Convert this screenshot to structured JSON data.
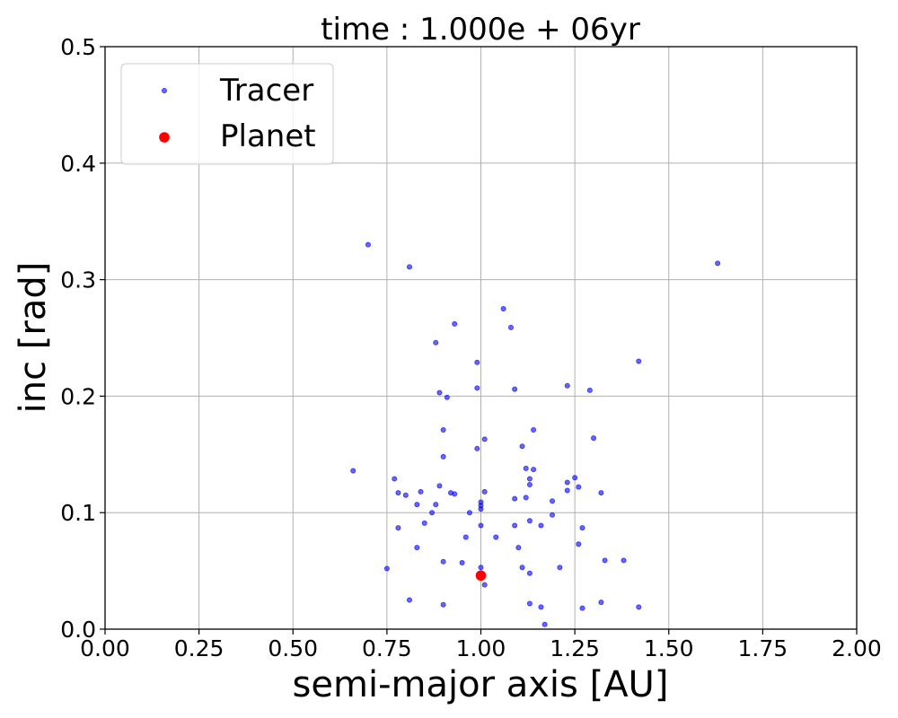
{
  "chart_data": {
    "type": "scatter",
    "title": "time : 1.000e + 06yr",
    "xlabel": "semi-major axis [AU]",
    "ylabel": "inc [rad]",
    "xlim": [
      0.0,
      2.0
    ],
    "ylim": [
      0.0,
      0.5
    ],
    "x_ticks": [
      "0.00",
      "0.25",
      "0.50",
      "0.75",
      "1.00",
      "1.25",
      "1.50",
      "1.75",
      "2.00"
    ],
    "y_ticks": [
      "0.0",
      "0.1",
      "0.2",
      "0.3",
      "0.4",
      "0.5"
    ],
    "grid": true,
    "legend_position": "top-left",
    "series": [
      {
        "name": "Tracer",
        "color": "#0000ff",
        "marker": "small-circle",
        "points": [
          [
            0.7,
            0.33
          ],
          [
            0.81,
            0.311
          ],
          [
            1.63,
            0.314
          ],
          [
            1.06,
            0.275
          ],
          [
            0.93,
            0.262
          ],
          [
            1.08,
            0.259
          ],
          [
            0.88,
            0.246
          ],
          [
            0.99,
            0.229
          ],
          [
            1.42,
            0.23
          ],
          [
            1.23,
            0.209
          ],
          [
            0.99,
            0.207
          ],
          [
            1.09,
            0.206
          ],
          [
            1.29,
            0.205
          ],
          [
            0.89,
            0.203
          ],
          [
            0.91,
            0.199
          ],
          [
            0.9,
            0.171
          ],
          [
            1.14,
            0.171
          ],
          [
            1.3,
            0.164
          ],
          [
            1.01,
            0.163
          ],
          [
            1.11,
            0.157
          ],
          [
            0.99,
            0.155
          ],
          [
            0.9,
            0.148
          ],
          [
            1.12,
            0.138
          ],
          [
            1.14,
            0.137
          ],
          [
            0.66,
            0.136
          ],
          [
            1.25,
            0.13
          ],
          [
            1.13,
            0.129
          ],
          [
            0.77,
            0.129
          ],
          [
            1.23,
            0.126
          ],
          [
            1.13,
            0.124
          ],
          [
            1.26,
            0.122
          ],
          [
            0.89,
            0.123
          ],
          [
            1.23,
            0.119
          ],
          [
            1.01,
            0.118
          ],
          [
            0.84,
            0.118
          ],
          [
            0.92,
            0.117
          ],
          [
            1.32,
            0.117
          ],
          [
            0.78,
            0.117
          ],
          [
            0.93,
            0.116
          ],
          [
            0.8,
            0.115
          ],
          [
            1.09,
            0.112
          ],
          [
            1.12,
            0.113
          ],
          [
            1.19,
            0.11
          ],
          [
            1.0,
            0.109
          ],
          [
            1.0,
            0.106
          ],
          [
            0.88,
            0.107
          ],
          [
            0.83,
            0.107
          ],
          [
            1.0,
            0.103
          ],
          [
            0.97,
            0.1
          ],
          [
            0.87,
            0.1
          ],
          [
            1.19,
            0.098
          ],
          [
            1.13,
            0.093
          ],
          [
            0.85,
            0.091
          ],
          [
            1.16,
            0.089
          ],
          [
            1.0,
            0.089
          ],
          [
            1.09,
            0.089
          ],
          [
            0.78,
            0.087
          ],
          [
            1.27,
            0.087
          ],
          [
            0.96,
            0.079
          ],
          [
            1.04,
            0.079
          ],
          [
            1.26,
            0.073
          ],
          [
            0.83,
            0.07
          ],
          [
            1.1,
            0.07
          ],
          [
            1.33,
            0.059
          ],
          [
            1.38,
            0.059
          ],
          [
            0.9,
            0.058
          ],
          [
            0.95,
            0.057
          ],
          [
            1.21,
            0.053
          ],
          [
            1.0,
            0.053
          ],
          [
            1.11,
            0.053
          ],
          [
            0.75,
            0.052
          ],
          [
            1.13,
            0.048
          ],
          [
            1.01,
            0.038
          ],
          [
            0.81,
            0.025
          ],
          [
            1.32,
            0.023
          ],
          [
            1.13,
            0.022
          ],
          [
            0.9,
            0.021
          ],
          [
            1.42,
            0.019
          ],
          [
            1.16,
            0.019
          ],
          [
            1.27,
            0.018
          ],
          [
            1.17,
            0.004
          ]
        ]
      },
      {
        "name": "Planet",
        "color": "#ff0000",
        "marker": "large-circle",
        "points": [
          [
            1.0,
            0.046
          ]
        ]
      }
    ]
  }
}
